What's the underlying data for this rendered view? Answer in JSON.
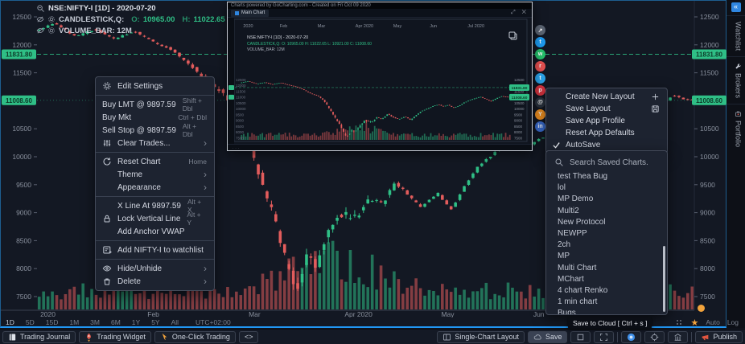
{
  "app": {
    "accent_blue": "#2196f3",
    "green": "#2fbf86",
    "red": "#e25c5c"
  },
  "header": {
    "symbol": "NSE:NIFTY-I [1D] - 2020-07-20",
    "series_label": "CANDLESTICK,Q:",
    "ohlc": [
      {
        "k": "O:",
        "v": "10965.00"
      },
      {
        "k": "H:",
        "v": "11022.65"
      },
      {
        "k": "L:",
        "v": "10921.00"
      },
      {
        "k": "C:",
        "v": "11008.6"
      }
    ],
    "volume_label": "VOLUME_BAR: 12M"
  },
  "price_axis": {
    "ticks": [
      12500,
      12000,
      11500,
      10500,
      10000,
      9500,
      9000,
      8500,
      8000,
      7500
    ],
    "badges": [
      "11831.80",
      "11008.60"
    ]
  },
  "x_axis": {
    "labels": [
      {
        "t": "2020",
        "f": 0.005
      },
      {
        "t": "Feb",
        "f": 0.168
      },
      {
        "t": "Mar",
        "f": 0.322
      },
      {
        "t": "Apr 2020",
        "f": 0.468
      },
      {
        "t": "May",
        "f": 0.615
      },
      {
        "t": "Jun",
        "f": 0.755
      }
    ]
  },
  "chart_data": {
    "type": "candlestick",
    "symbol": "NSE:NIFTY-I",
    "interval": "1D",
    "as_of": "2020-07-20",
    "price_range": [
      7400,
      12600
    ],
    "levels": [
      11831.8,
      11008.6
    ],
    "anchors": [
      [
        0,
        12250
      ],
      [
        0.03,
        12390
      ],
      [
        0.06,
        12150
      ],
      [
        0.09,
        12280
      ],
      [
        0.12,
        12100
      ],
      [
        0.15,
        12250
      ],
      [
        0.18,
        12050
      ],
      [
        0.21,
        11900
      ],
      [
        0.24,
        11600
      ],
      [
        0.265,
        11300
      ],
      [
        0.29,
        11100
      ],
      [
        0.31,
        10800
      ],
      [
        0.33,
        10100
      ],
      [
        0.35,
        9400
      ],
      [
        0.37,
        8700
      ],
      [
        0.385,
        8000
      ],
      [
        0.4,
        7600
      ],
      [
        0.415,
        8200
      ],
      [
        0.43,
        8000
      ],
      [
        0.445,
        8600
      ],
      [
        0.465,
        9000
      ],
      [
        0.49,
        8900
      ],
      [
        0.51,
        9250
      ],
      [
        0.53,
        9150
      ],
      [
        0.55,
        9550
      ],
      [
        0.57,
        9300
      ],
      [
        0.59,
        9100
      ],
      [
        0.615,
        9350
      ],
      [
        0.635,
        9050
      ],
      [
        0.655,
        9450
      ],
      [
        0.675,
        9800
      ],
      [
        0.7,
        10050
      ],
      [
        0.72,
        10250
      ],
      [
        0.74,
        10400
      ],
      [
        0.755,
        10200
      ],
      [
        0.775,
        10350
      ],
      [
        0.795,
        10100
      ],
      [
        0.815,
        10250
      ],
      [
        0.835,
        10550
      ],
      [
        0.855,
        10750
      ],
      [
        0.875,
        10900
      ],
      [
        0.895,
        11050
      ],
      [
        0.915,
        10850
      ],
      [
        0.935,
        10650
      ],
      [
        0.955,
        10900
      ],
      [
        0.975,
        11100
      ],
      [
        1,
        11008.6
      ]
    ]
  },
  "context_menu": {
    "sections": [
      {
        "items": [
          {
            "icon": "gear",
            "label": "Edit Settings"
          }
        ]
      },
      {
        "items": [
          {
            "label": "Buy LMT @ 9897.59",
            "shortcut": "Shift + Dbl"
          },
          {
            "label": "Buy Mkt",
            "shortcut": "Ctrl + Dbl"
          },
          {
            "label": "Sell Stop @ 9897.59",
            "shortcut": "Alt + Dbl"
          },
          {
            "icon": "sliders",
            "label": "Clear Trades...",
            "chevron": true
          }
        ]
      },
      {
        "items": [
          {
            "icon": "reset",
            "label": "Reset Chart",
            "shortcut": "Home"
          },
          {
            "label": "Theme",
            "indent": true,
            "chevron": true
          },
          {
            "label": "Appearance",
            "indent": true,
            "chevron": true
          }
        ]
      },
      {
        "items": [
          {
            "label": "X Line At 9897.59",
            "indent": true,
            "shortcut": "Alt + X"
          },
          {
            "icon": "lock",
            "label": "Lock Vertical Line",
            "shortcut": "Alt + Y"
          },
          {
            "label": "Add Anchor VWAP",
            "indent": true
          }
        ]
      },
      {
        "items": [
          {
            "icon": "watchlist-add",
            "label": "Add NIFTY-I to watchlist"
          }
        ]
      },
      {
        "items": [
          {
            "icon": "eye",
            "label": "Hide/Unhide",
            "chevron": true
          },
          {
            "icon": "trash",
            "label": "Delete",
            "chevron": true
          }
        ]
      }
    ]
  },
  "layout_menu": {
    "items": [
      {
        "label": "Create New Layout",
        "right_icon": "plus"
      },
      {
        "label": "Save Layout",
        "right_icon": "save"
      },
      {
        "label": "Save App Profile"
      },
      {
        "label": "Reset App Defaults"
      },
      {
        "label": "AutoSave",
        "checked": true
      }
    ]
  },
  "saved_charts": {
    "search_placeholder": "Search Saved Charts.",
    "items": [
      "test Thea Bug",
      "lol",
      "MP Demo",
      "Multi2",
      "New Protocol",
      "NEWPP",
      "2ch",
      "MP",
      "Multi Chart",
      "MChart",
      "4 chart Renko",
      "1 min chart",
      "Bugs"
    ]
  },
  "share_buttons": [
    {
      "name": "share-link",
      "color": "#5b6472",
      "glyph": "↗"
    },
    {
      "name": "twitter",
      "color": "#1d9bf0",
      "glyph": "t"
    },
    {
      "name": "whatsapp",
      "color": "#25c16b",
      "glyph": "w"
    },
    {
      "name": "reddit",
      "color": "#e35050",
      "glyph": "r"
    },
    {
      "name": "telegram",
      "color": "#2aa3e8",
      "glyph": "t"
    },
    {
      "name": "pinterest",
      "color": "#d6333f",
      "glyph": "p"
    },
    {
      "name": "email",
      "color": "#2b3440",
      "glyph": "@"
    },
    {
      "name": "hackernews",
      "color": "#f59422",
      "glyph": "Y"
    },
    {
      "name": "linkedin",
      "color": "#3b6fd4",
      "glyph": "in"
    }
  ],
  "overlay": {
    "titlebar": "Charts powered by GoCharting.com  -  Created on Fri Oct 09 2020",
    "tab_label": "Main Chart",
    "tab_icons": "⤢ ✕",
    "symbol": "NSE:NIFTY-I [1D] - 2020-07-20",
    "ohlc_line": "CANDLESTICK,Q:  O: 10965.00  H: 11022.65  L: 10921.00  C: 11008.60",
    "volume_line": "VOLUME_BAR: 12M",
    "months": [
      "2020",
      "Feb",
      "Mar",
      "Apr 2020",
      "May",
      "Jun",
      "Jul 2020"
    ],
    "badges": [
      "11831.80",
      "11008.60"
    ],
    "footer": "..."
  },
  "tooltip": "Save to Cloud [ Ctrl + s ]",
  "timeframe_bar": {
    "ranges": [
      "1D",
      "5D",
      "15D",
      "1M",
      "3M",
      "6M",
      "1Y",
      "5Y",
      "All"
    ],
    "timezone": "UTC+02:00",
    "auto_label": "Auto",
    "log_label": "Log"
  },
  "taskbar": {
    "left": [
      {
        "icon": "journal",
        "label": "Trading Journal"
      },
      {
        "icon": "rocket",
        "label": "Trading Widget"
      },
      {
        "icon": "cursor",
        "label": "One-Click Trading"
      },
      {
        "icon": "code",
        "label": "<>"
      }
    ],
    "right": [
      {
        "icon": "layout",
        "label": "Single-Chart Layout"
      },
      {
        "icon": "cloud",
        "label": "Save",
        "highlight": true
      },
      {
        "icon": "square",
        "label": ""
      },
      {
        "icon": "expand",
        "label": ""
      },
      {
        "sep": true
      },
      {
        "icon": "camera",
        "label": ""
      },
      {
        "icon": "target",
        "label": ""
      },
      {
        "icon": "columns",
        "label": ""
      },
      {
        "sep": true
      },
      {
        "icon": "megaphone",
        "label": "Publish"
      }
    ]
  },
  "side_tabs": {
    "collapse_glyph": "«",
    "tabs": [
      {
        "label": "Watchlist"
      },
      {
        "label": "Brokers",
        "icon": "wrench"
      },
      {
        "label": "Portfolio",
        "icon": "portfolio"
      }
    ]
  }
}
